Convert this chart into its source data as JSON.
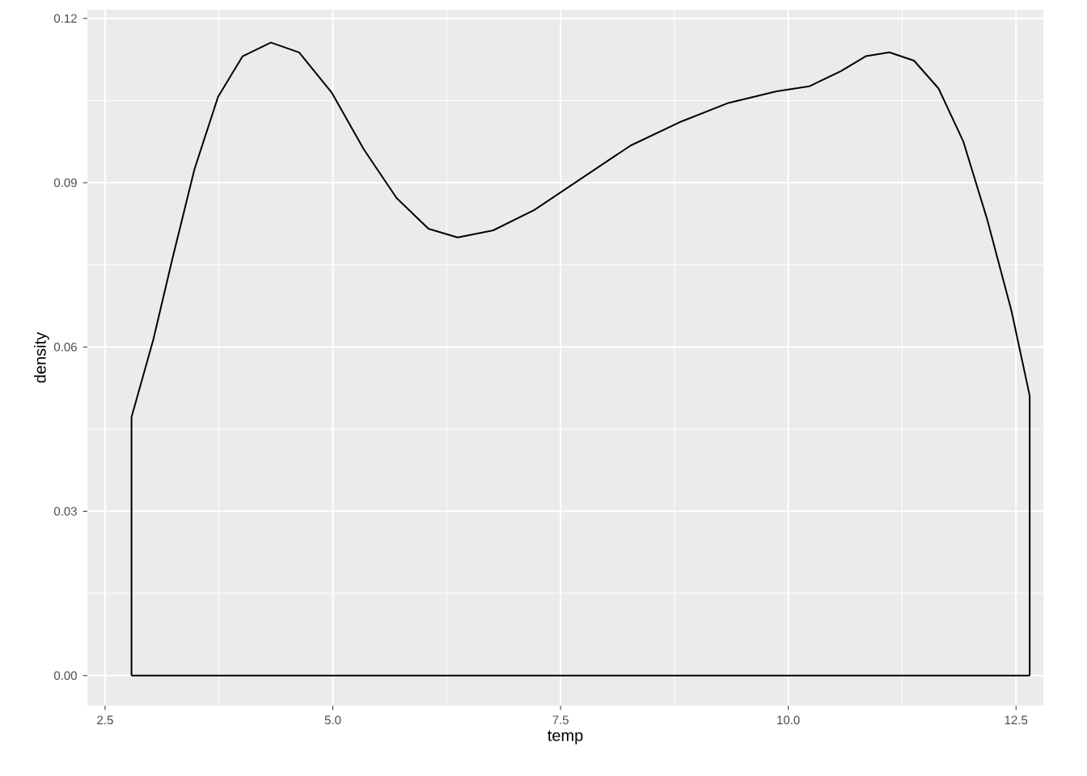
{
  "chart_data": {
    "type": "line",
    "xlabel": "temp",
    "ylabel": "density",
    "color": "#000000",
    "grid": true,
    "x": [
      2.79,
      2.79,
      3.03,
      3.24,
      3.48,
      3.74,
      4.01,
      4.32,
      4.63,
      4.99,
      5.34,
      5.7,
      6.05,
      6.37,
      6.76,
      7.21,
      7.74,
      8.27,
      8.8,
      9.33,
      9.87,
      10.23,
      10.58,
      10.85,
      11.11,
      11.38,
      11.65,
      11.92,
      12.18,
      12.45,
      12.65,
      12.65
    ],
    "values": [
      0,
      0.0472,
      0.0614,
      0.0762,
      0.0924,
      0.1057,
      0.1131,
      0.1156,
      0.1138,
      0.1064,
      0.0961,
      0.0872,
      0.0816,
      0.08,
      0.0813,
      0.085,
      0.0909,
      0.0968,
      0.101,
      0.1045,
      0.1067,
      0.1076,
      0.1104,
      0.1131,
      0.1138,
      0.1123,
      0.1072,
      0.0976,
      0.0835,
      0.0666,
      0.0511,
      0
    ],
    "xlim": [
      2.305,
      12.8
    ],
    "ylim": [
      -0.0055,
      0.1216
    ],
    "xticks": [
      {
        "value": 2.5,
        "label": "2.5"
      },
      {
        "value": 5,
        "label": "5.0"
      },
      {
        "value": 7.5,
        "label": "7.5"
      },
      {
        "value": 10,
        "label": "10.0"
      },
      {
        "value": 12.5,
        "label": "12.5"
      }
    ],
    "yticks": [
      {
        "value": 0,
        "label": "0.00"
      },
      {
        "value": 0.03,
        "label": "0.03"
      },
      {
        "value": 0.06,
        "label": "0.06"
      },
      {
        "value": 0.09,
        "label": "0.09"
      },
      {
        "value": 0.12,
        "label": "0.12"
      }
    ]
  }
}
